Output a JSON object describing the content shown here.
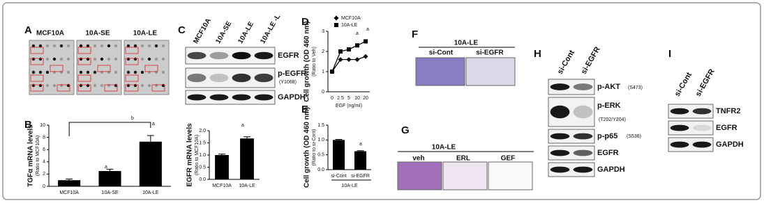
{
  "panel_labels": [
    "A",
    "B",
    "C",
    "D",
    "E",
    "F",
    "G",
    "H",
    "I"
  ],
  "array": {
    "columns": [
      "MCF10A",
      "10A-SE",
      "10A-LE"
    ]
  },
  "blot_c": {
    "columns": [
      "MCF10A",
      "10A-SE",
      "10A-LE",
      "10A-LE -L"
    ],
    "rows": [
      "EGFR",
      "p-EGFR",
      "GAPDH"
    ],
    "site": "(Y1068)"
  },
  "panel_f": {
    "group": "10A-LE",
    "columns": [
      "si-Cont",
      "si-EGFR"
    ]
  },
  "panel_g": {
    "group": "10A-LE",
    "columns": [
      "veh",
      "ERL",
      "GEF"
    ]
  },
  "blot_h": {
    "columns": [
      "si-Cont",
      "si-EGFR"
    ],
    "rows": [
      "p-AKT",
      "p-ERK",
      "p-p65",
      "EGFR",
      "GAPDH"
    ],
    "sites": [
      "(S473)",
      "(T202/Y204)",
      "(S536)"
    ]
  },
  "blot_i": {
    "columns": [
      "si-Cont",
      "si-EGFR"
    ],
    "rows": [
      "TNFR2",
      "EGFR",
      "GAPDH"
    ]
  },
  "chart_data": [
    {
      "type": "bar",
      "y_label": "TGFα mRNA levels",
      "y_label_sub": "(Ratio to MCF10A)",
      "categories": [
        "MCF10A",
        "10A-SE",
        "10A-LE"
      ],
      "values": [
        1.0,
        2.5,
        7.3
      ],
      "errors": [
        0.2,
        0.3,
        1.0
      ],
      "color": "#000000",
      "ylim": [
        0,
        10
      ],
      "yticks": [
        0,
        2,
        4,
        6,
        8,
        10
      ],
      "annotations": [
        "a",
        "a",
        "b"
      ]
    },
    {
      "type": "bar",
      "y_label": "EGFR mRNA levels",
      "y_label_sub": "(Ratio to MCF10A)",
      "categories": [
        "MCF10A",
        "10A-LE"
      ],
      "values": [
        1.0,
        1.68
      ],
      "errors": [
        0.04,
        0.07
      ],
      "color": "#000000",
      "ylim": [
        0,
        2
      ],
      "yticks": [
        {
          "value": 0,
          "label": "0.0"
        },
        {
          "value": 0.5,
          "label": "0.5"
        },
        {
          "value": 1,
          "label": "1.0"
        },
        {
          "value": 1.5,
          "label": "1.5"
        },
        {
          "value": 2,
          "label": "2.0"
        }
      ],
      "annotations": [
        "a"
      ]
    },
    {
      "type": "line",
      "y_label": "Cell growth (OD 460 nm)",
      "y_label_sub": "(Ratio to Veh)",
      "x_label": "EGF (ng/ml)",
      "categories": [
        "0",
        "2.5",
        "5",
        "10",
        "20"
      ],
      "series": [
        {
          "name": "MCF10A",
          "color": "#000000",
          "marker": "diamond",
          "values": [
            1.0,
            1.6,
            1.6,
            1.6,
            1.75
          ]
        },
        {
          "name": "10A-LE",
          "color": "#000000",
          "marker": "square",
          "values": [
            1.0,
            2.0,
            2.1,
            2.3,
            2.5
          ]
        }
      ],
      "ylim": [
        0,
        3
      ],
      "yticks": [
        0,
        1,
        2,
        3
      ],
      "annotations": [
        "a",
        "a"
      ]
    },
    {
      "type": "bar",
      "y_label": "Cell growth (OD 460 nm)",
      "y_label_sub": "(Ratio to si-Cont)",
      "x_group": "10A-LE",
      "categories": [
        "si-Cont",
        "si-EGFR"
      ],
      "values": [
        1.0,
        0.62
      ],
      "errors": [
        0.02,
        0.02
      ],
      "color": "#000000",
      "ylim": [
        0,
        1.5
      ],
      "yticks": [
        {
          "value": 0,
          "label": "0.0"
        },
        {
          "value": 0.5,
          "label": "0.5"
        },
        {
          "value": 1,
          "label": "1.0"
        },
        {
          "value": 1.5,
          "label": "1.5"
        }
      ],
      "annotations": [
        "a"
      ]
    }
  ]
}
